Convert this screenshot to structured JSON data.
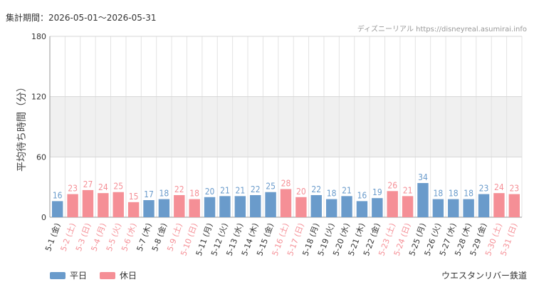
{
  "header": {
    "period": "集計期間：2026-05-01～2026-05-31",
    "source": "ディズニーリアル https://disneyreal.asumirai.info"
  },
  "footer": {
    "attraction": "ウエスタンリバー鉄道"
  },
  "colors": {
    "weekday": "#6a9bcb",
    "holiday": "#f58f96",
    "band": "#f0f0f0",
    "grid": "#e3e3e3"
  },
  "chart_data": {
    "type": "bar",
    "ylabel": "平均待ち時間（分）",
    "ylim": [
      0,
      180
    ],
    "yticks": [
      0,
      60,
      120,
      180
    ],
    "shaded_band": [
      60,
      120
    ],
    "categories": [
      "5-1 (金)",
      "5-2 (土)",
      "5-3 (日)",
      "5-4 (月)",
      "5-5 (火)",
      "5-6 (水)",
      "5-7 (木)",
      "5-8 (金)",
      "5-9 (土)",
      "5-10 (日)",
      "5-11 (月)",
      "5-12 (火)",
      "5-13 (水)",
      "5-14 (木)",
      "5-15 (金)",
      "5-16 (土)",
      "5-17 (日)",
      "5-18 (月)",
      "5-19 (火)",
      "5-20 (水)",
      "5-21 (木)",
      "5-22 (金)",
      "5-23 (土)",
      "5-24 (日)",
      "5-25 (月)",
      "5-26 (火)",
      "5-27 (水)",
      "5-28 (木)",
      "5-29 (金)",
      "5-30 (土)",
      "5-31 (日)"
    ],
    "values": [
      16,
      23,
      27,
      24,
      25,
      15,
      17,
      18,
      22,
      18,
      20,
      21,
      21,
      22,
      25,
      28,
      20,
      22,
      18,
      21,
      16,
      19,
      26,
      21,
      34,
      18,
      18,
      18,
      23,
      24,
      23
    ],
    "day_type": [
      "weekday",
      "holiday",
      "holiday",
      "holiday",
      "holiday",
      "holiday",
      "weekday",
      "weekday",
      "holiday",
      "holiday",
      "weekday",
      "weekday",
      "weekday",
      "weekday",
      "weekday",
      "holiday",
      "holiday",
      "weekday",
      "weekday",
      "weekday",
      "weekday",
      "weekday",
      "holiday",
      "holiday",
      "weekday",
      "weekday",
      "weekday",
      "weekday",
      "weekday",
      "holiday",
      "holiday"
    ],
    "legend": [
      {
        "key": "weekday",
        "label": "平日"
      },
      {
        "key": "holiday",
        "label": "休日"
      }
    ]
  }
}
